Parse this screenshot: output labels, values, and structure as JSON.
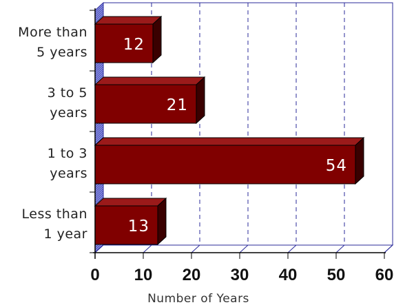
{
  "chart_data": {
    "type": "bar",
    "orientation": "horizontal",
    "categories": [
      [
        "More than",
        "5 years"
      ],
      [
        "3 to 5",
        "years"
      ],
      [
        "1 to 3",
        "years"
      ],
      [
        "Less than",
        "1 year"
      ]
    ],
    "values": [
      12,
      21,
      54,
      13
    ],
    "data_labels": [
      "12",
      "21",
      "54",
      "13"
    ],
    "xlabel": "Number of Years",
    "xlim": [
      0,
      60
    ],
    "xticks": [
      0,
      10,
      20,
      30,
      40,
      50,
      60
    ],
    "xtick_labels": [
      "0",
      "10",
      "20",
      "30",
      "40",
      "50",
      "60"
    ],
    "grid": "vertical dashed",
    "legend": "none",
    "three_d": true,
    "colors": {
      "bar_face": "#800000",
      "bar_top": "#9b1a1a",
      "bar_side": "#3a0000",
      "grid": "#2a2a9a",
      "wall": "#8f95e6",
      "axis": "#000000"
    }
  }
}
